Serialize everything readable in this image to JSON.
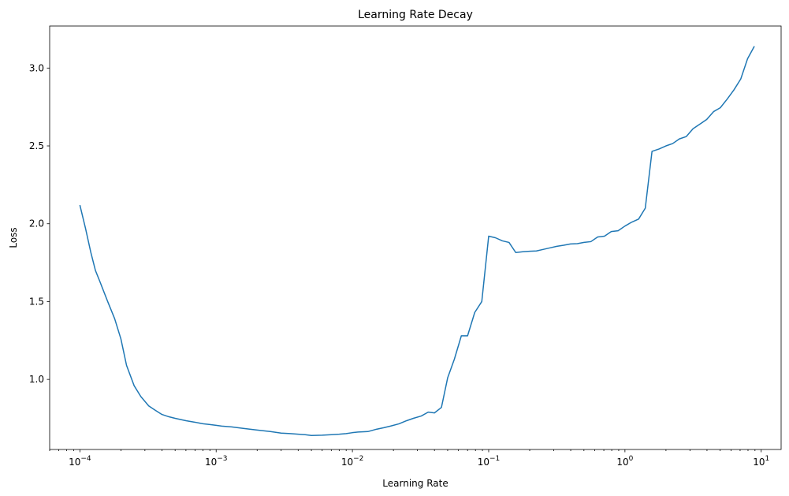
{
  "chart_data": {
    "type": "line",
    "title": "Learning Rate Decay",
    "xlabel": "Learning Rate",
    "ylabel": "Loss",
    "xscale": "log",
    "xlim": [
      6e-05,
      14
    ],
    "ylim": [
      0.55,
      3.27
    ],
    "grid": false,
    "x_ticks": [
      {
        "value": 0.0001,
        "base": "10",
        "exp": "−4"
      },
      {
        "value": 0.001,
        "base": "10",
        "exp": "−3"
      },
      {
        "value": 0.01,
        "base": "10",
        "exp": "−2"
      },
      {
        "value": 0.1,
        "base": "10",
        "exp": "−1"
      },
      {
        "value": 1,
        "base": "10",
        "exp": "0"
      },
      {
        "value": 10,
        "base": "10",
        "exp": "1"
      }
    ],
    "y_ticks": [
      {
        "value": 1.0,
        "label": "1.0"
      },
      {
        "value": 1.5,
        "label": "1.5"
      },
      {
        "value": 2.0,
        "label": "2.0"
      },
      {
        "value": 2.5,
        "label": "2.5"
      },
      {
        "value": 3.0,
        "label": "3.0"
      }
    ],
    "series": [
      {
        "color": "#1f77b4",
        "x": [
          0.0001,
          0.00011,
          0.00012,
          0.00013,
          0.00014,
          0.00016,
          0.00018,
          0.0002,
          0.00022,
          0.00025,
          0.00028,
          0.00032,
          0.00036,
          0.0004,
          0.00045,
          0.0005,
          0.0006,
          0.0007,
          0.0008,
          0.0009,
          0.001,
          0.0011,
          0.0013,
          0.0016,
          0.002,
          0.0025,
          0.003,
          0.0035,
          0.004,
          0.0045,
          0.005,
          0.006,
          0.007,
          0.008,
          0.009,
          0.01,
          0.011,
          0.013,
          0.015,
          0.017,
          0.019,
          0.022,
          0.025,
          0.028,
          0.032,
          0.036,
          0.04,
          0.045,
          0.05,
          0.056,
          0.063,
          0.07,
          0.079,
          0.089,
          0.1,
          0.112,
          0.126,
          0.141,
          0.158,
          0.178,
          0.2,
          0.224,
          0.251,
          0.282,
          0.316,
          0.355,
          0.398,
          0.447,
          0.501,
          0.562,
          0.631,
          0.708,
          0.794,
          0.891,
          1.0,
          1.12,
          1.26,
          1.41,
          1.58,
          1.78,
          2.0,
          2.24,
          2.51,
          2.82,
          3.16,
          3.55,
          3.98,
          4.47,
          5.01,
          5.62,
          6.31,
          7.08,
          7.94,
          8.91
        ],
        "y": [
          2.12,
          1.97,
          1.82,
          1.7,
          1.63,
          1.5,
          1.39,
          1.26,
          1.09,
          0.96,
          0.89,
          0.83,
          0.8,
          0.775,
          0.76,
          0.75,
          0.735,
          0.725,
          0.715,
          0.71,
          0.705,
          0.7,
          0.695,
          0.685,
          0.675,
          0.665,
          0.655,
          0.652,
          0.648,
          0.645,
          0.64,
          0.642,
          0.645,
          0.648,
          0.652,
          0.658,
          0.662,
          0.665,
          0.68,
          0.69,
          0.7,
          0.715,
          0.735,
          0.75,
          0.765,
          0.79,
          0.785,
          0.82,
          1.01,
          1.13,
          1.28,
          1.28,
          1.43,
          1.5,
          1.92,
          1.91,
          1.89,
          1.88,
          1.815,
          1.82,
          1.823,
          1.825,
          1.835,
          1.845,
          1.855,
          1.862,
          1.87,
          1.872,
          1.88,
          1.885,
          1.915,
          1.92,
          1.95,
          1.955,
          1.985,
          2.01,
          2.03,
          2.1,
          2.465,
          2.48,
          2.5,
          2.515,
          2.545,
          2.56,
          2.61,
          2.64,
          2.67,
          2.72,
          2.745,
          2.8,
          2.86,
          2.93,
          3.06,
          3.14
        ]
      }
    ]
  }
}
